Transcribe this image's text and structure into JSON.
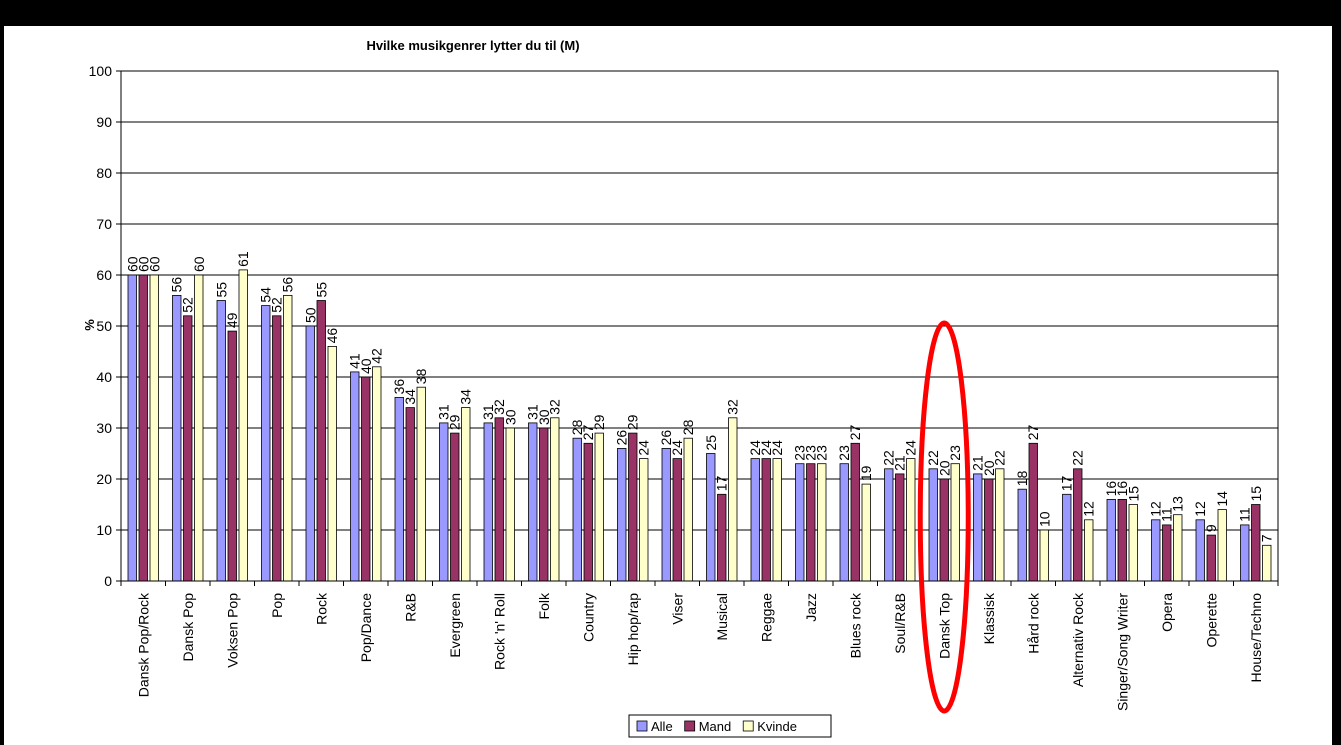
{
  "chart_data": {
    "type": "bar",
    "title": "Hvilke musikgenrer lytter du til (M)",
    "xlabel": "",
    "ylabel": "%",
    "ylim": [
      0,
      100
    ],
    "yticks": [
      0,
      10,
      20,
      30,
      40,
      50,
      60,
      70,
      80,
      90,
      100
    ],
    "grid": true,
    "legend_position": "bottom",
    "categories": [
      "Dansk Pop/Rock",
      "Dansk Pop",
      "Voksen Pop",
      "Pop",
      "Rock",
      "Pop/Dance",
      "R&B",
      "Evergreen",
      "Rock 'n' Roll",
      "Folk",
      "Country",
      "Hip hop/rap",
      "Viser",
      "Musical",
      "Reggae",
      "Jazz",
      "Blues rock",
      "Soul/R&B",
      "Dansk Top",
      "Klassisk",
      "Hård rock",
      "Alternativ Rock",
      "Singer/Song Writer",
      "Opera",
      "Operette",
      "House/Techno"
    ],
    "series": [
      {
        "name": "Alle",
        "color": "#9999FF",
        "values": [
          60,
          56,
          55,
          54,
          50,
          41,
          36,
          31,
          31,
          31,
          28,
          26,
          26,
          25,
          24,
          23,
          23,
          22,
          22,
          21,
          18,
          17,
          16,
          12,
          12,
          11
        ]
      },
      {
        "name": "Mand",
        "color": "#993366",
        "values": [
          60,
          52,
          49,
          52,
          55,
          40,
          34,
          29,
          32,
          30,
          27,
          29,
          24,
          17,
          24,
          23,
          27,
          21,
          20,
          20,
          27,
          22,
          16,
          11,
          9,
          15
        ]
      },
      {
        "name": "Kvinde",
        "color": "#FFFFCC",
        "values": [
          60,
          60,
          61,
          56,
          46,
          42,
          38,
          34,
          30,
          32,
          29,
          24,
          28,
          32,
          24,
          23,
          19,
          24,
          23,
          22,
          10,
          12,
          15,
          13,
          14,
          7
        ]
      }
    ],
    "highlight": {
      "category": "Dansk Top",
      "shape": "ellipse",
      "color": "#FF0000"
    }
  }
}
